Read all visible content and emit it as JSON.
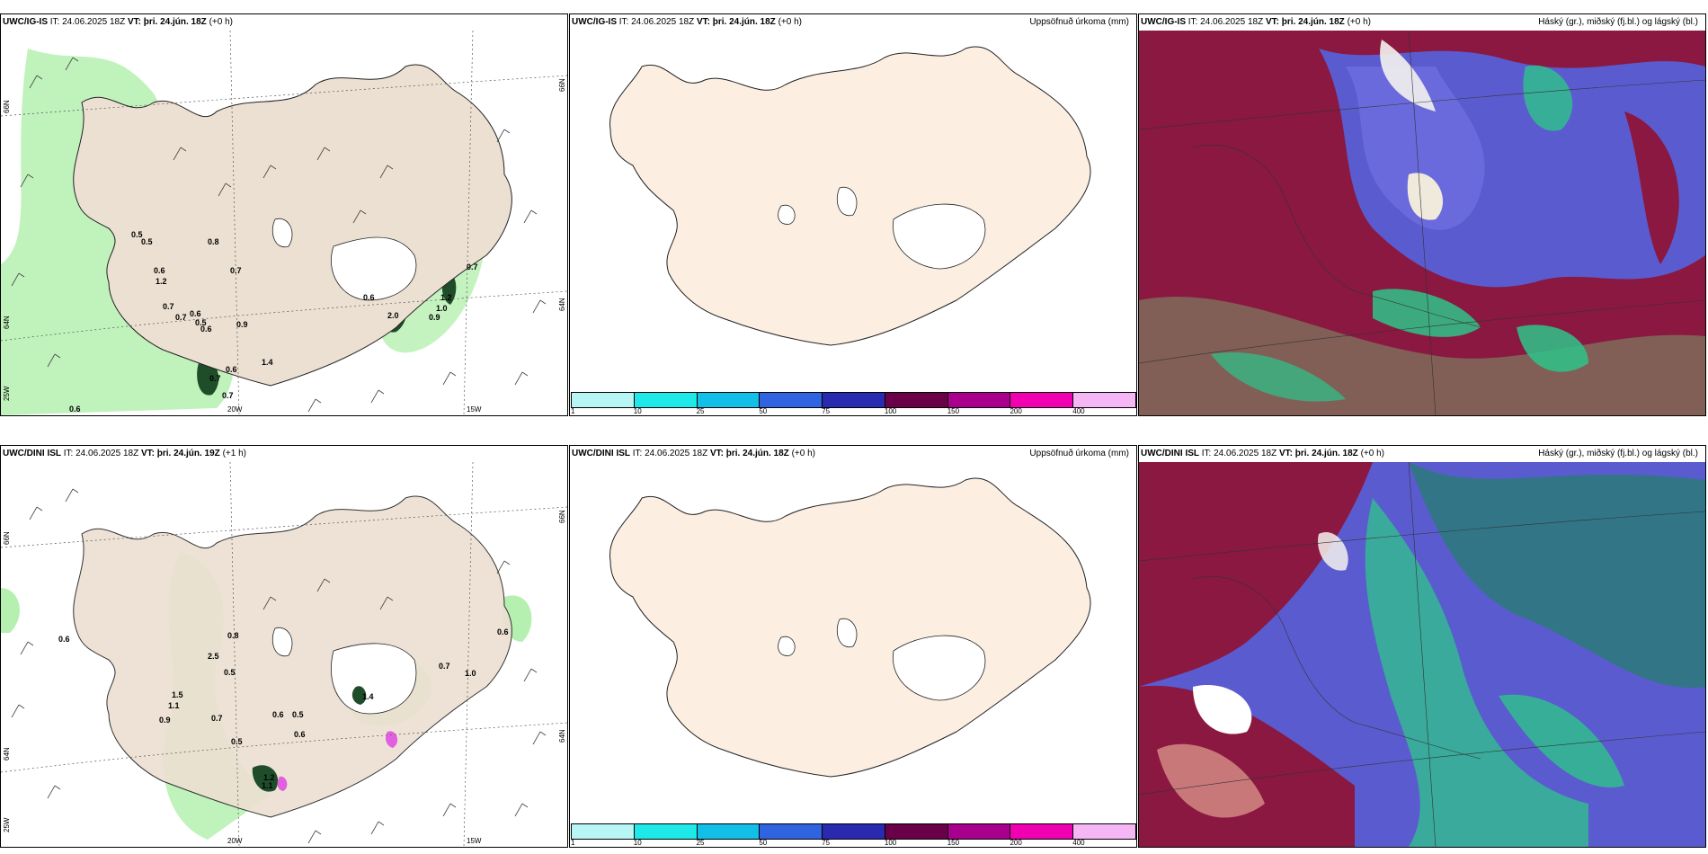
{
  "panels": {
    "top_left": {
      "model": "UWC/IG-IS",
      "it": "IT: 24.06.2025 18Z",
      "vt": "VT: þri. 24.jún. 18Z",
      "lead": "(+0 h)"
    },
    "top_mid": {
      "model": "UWC/IG-IS",
      "it": "IT: 24.06.2025 18Z",
      "vt": "VT: þri. 24.jún. 18Z",
      "lead": "(+0 h)",
      "right_title": "Uppsöfnuð úrkoma (mm)"
    },
    "top_right": {
      "model": "UWC/IG-IS",
      "it": "IT: 24.06.2025 18Z",
      "vt": "VT: þri. 24.jún. 18Z",
      "lead": "(+0 h)",
      "right_title": "Háský (gr.), miðský (fj.bl.) og lágský (bl.)"
    },
    "bot_left": {
      "model": "UWC/DINI ISL",
      "it": "IT: 24.06.2025 18Z",
      "vt": "VT: þri. 24.jún. 19Z",
      "lead": "(+1 h)"
    },
    "bot_mid": {
      "model": "UWC/DINI ISL",
      "it": "IT: 24.06.2025 18Z",
      "vt": "VT: þri. 24.jún. 18Z",
      "lead": "(+0 h)",
      "right_title": "Uppsöfnuð úrkoma (mm)"
    },
    "bot_right": {
      "model": "UWC/DINI ISL",
      "it": "IT: 24.06.2025 18Z",
      "vt": "VT: þri. 24.jún. 18Z",
      "lead": "(+0 h)",
      "right_title": "Háský (gr.), miðský (fj.bl.) og lágský (bl.)"
    }
  },
  "axes": {
    "lon_20w": "20W",
    "lon_15w": "15W",
    "lat_66n": "66N",
    "lat_64n": "64N",
    "lat_25w": "25W",
    "lat_66n_r": "66N",
    "lat_64n_r": "64N"
  },
  "precip_scale": {
    "labels": [
      "1",
      "10",
      "25",
      "50",
      "75",
      "100",
      "150",
      "200",
      "400"
    ],
    "colors": [
      "#b8f5f5",
      "#1ee8e8",
      "#12bfe6",
      "#2f63e0",
      "#2a2ab0",
      "#6a0048",
      "#a8008c",
      "#f000b0",
      "#f4b6f4"
    ]
  },
  "top_left_labels": [
    "0.5",
    "0.5",
    "0.8",
    "0.6",
    "1.2",
    "0.7",
    "0.7",
    "0.6",
    "0.7",
    "0.5",
    "0.6",
    "0.9",
    "0.6",
    "2.0",
    "0.9",
    "1.0",
    "1.2",
    "0.7",
    "0.6",
    "0.7",
    "1.4",
    "0.6",
    "0.7"
  ],
  "bot_left_labels": [
    "0.6",
    "0.8",
    "2.5",
    "0.5",
    "1.5",
    "1.1",
    "0.9",
    "0.7",
    "0.6",
    "0.5",
    "0.6",
    "0.5",
    "1.4",
    "1.2",
    "1.1",
    "0.7",
    "1.0",
    "0.6"
  ],
  "colors": {
    "land": "#ece0d2",
    "land_mid": "#fcefe2",
    "rain_light": "#b5f0b0",
    "rain_mid": "#5fbf6a",
    "rain_dark": "#1f4d2a",
    "cloud_red": "#8a1840",
    "cloud_blue": "#5b5bd0",
    "cloud_green": "#2ec48a"
  }
}
